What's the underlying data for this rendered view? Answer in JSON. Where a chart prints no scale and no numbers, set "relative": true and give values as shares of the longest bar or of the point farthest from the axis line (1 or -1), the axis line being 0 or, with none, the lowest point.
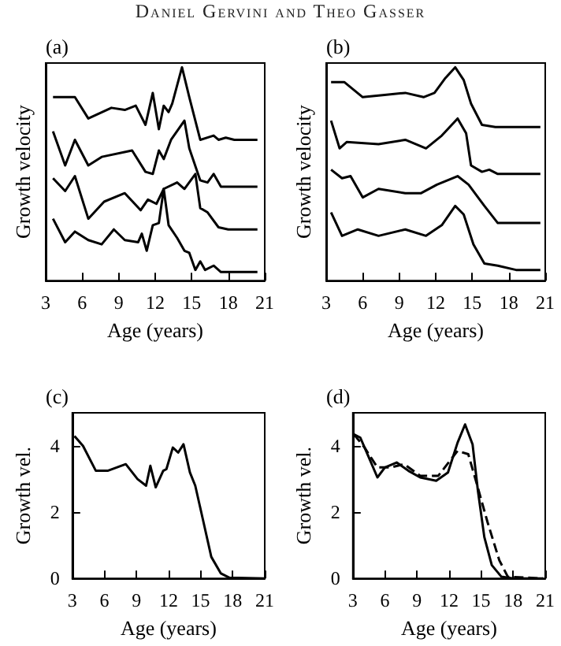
{
  "chart_data": [
    {
      "type": "line",
      "title": "(a)",
      "ylabel": "Growth velocity",
      "xlabel": "Age (years)",
      "relative": true,
      "annotations": [
        "Daniel Gervini and Theo Gasser"
      ],
      "xlim": [
        3,
        21
      ],
      "xticks": [
        3,
        6,
        9,
        12,
        15,
        18,
        21
      ],
      "marker": "none",
      "line_style": "solid",
      "grid": false,
      "series": [
        {
          "color": "#000000",
          "x": [
            3.6,
            5.4,
            6.5,
            8.4,
            9.5,
            10.4,
            11.2,
            11.8,
            12.3,
            12.7,
            13.1,
            13.4,
            14.2,
            14.8,
            15.7,
            16.8,
            17.2,
            17.8,
            18.5,
            20.4
          ],
          "values": [
            0.86,
            0.86,
            0.76,
            0.81,
            0.8,
            0.82,
            0.73,
            0.88,
            0.71,
            0.82,
            0.79,
            0.83,
            1.0,
            0.86,
            0.66,
            0.68,
            0.66,
            0.67,
            0.66,
            0.66
          ]
        },
        {
          "color": "#000000",
          "x": [
            3.6,
            4.6,
            5.4,
            6.5,
            7.6,
            10.1,
            11.2,
            11.8,
            12.3,
            12.7,
            13.3,
            14.4,
            14.8,
            15.7,
            16.3,
            16.8,
            17.4,
            20.4
          ],
          "values": [
            0.7,
            0.54,
            0.66,
            0.54,
            0.58,
            0.61,
            0.51,
            0.5,
            0.61,
            0.57,
            0.66,
            0.75,
            0.62,
            0.47,
            0.46,
            0.5,
            0.44,
            0.44
          ]
        },
        {
          "color": "#000000",
          "x": [
            3.6,
            4.6,
            5.4,
            6.5,
            7.8,
            9.5,
            10.8,
            11.4,
            12.1,
            12.7,
            13.8,
            14.4,
            15.3,
            15.7,
            16.3,
            17.2,
            18.0,
            20.4
          ],
          "values": [
            0.48,
            0.42,
            0.49,
            0.29,
            0.37,
            0.41,
            0.33,
            0.38,
            0.36,
            0.43,
            0.46,
            0.43,
            0.5,
            0.34,
            0.32,
            0.25,
            0.24,
            0.24
          ]
        },
        {
          "color": "#000000",
          "x": [
            3.6,
            4.6,
            5.4,
            6.5,
            7.6,
            8.6,
            9.5,
            10.6,
            10.9,
            11.3,
            11.8,
            12.3,
            12.7,
            13.1,
            13.8,
            14.4,
            14.8,
            15.3,
            15.7,
            16.1,
            16.8,
            17.4,
            20.4
          ],
          "values": [
            0.29,
            0.18,
            0.23,
            0.19,
            0.17,
            0.24,
            0.19,
            0.18,
            0.22,
            0.14,
            0.26,
            0.27,
            0.43,
            0.26,
            0.2,
            0.14,
            0.13,
            0.05,
            0.09,
            0.05,
            0.07,
            0.04,
            0.04
          ]
        }
      ]
    },
    {
      "type": "line",
      "title": "(b)",
      "ylabel": "Growth velocity",
      "xlabel": "Age (years)",
      "relative": true,
      "xlim": [
        3,
        21
      ],
      "xticks": [
        3,
        6,
        9,
        12,
        15,
        18,
        21
      ],
      "marker": "none",
      "line_style": "solid",
      "grid": false,
      "series": [
        {
          "color": "#000000",
          "x": [
            3.4,
            4.5,
            6.0,
            7.8,
            9.5,
            11.0,
            11.9,
            12.8,
            13.6,
            14.3,
            14.9,
            15.8,
            16.9,
            20.6
          ],
          "values": [
            0.93,
            0.93,
            0.86,
            0.87,
            0.88,
            0.86,
            0.88,
            0.95,
            1.0,
            0.94,
            0.83,
            0.73,
            0.72,
            0.72
          ]
        },
        {
          "color": "#000000",
          "x": [
            3.4,
            4.1,
            4.7,
            7.3,
            9.5,
            11.2,
            12.5,
            13.8,
            14.5,
            14.9,
            15.8,
            16.4,
            17.1,
            20.6
          ],
          "values": [
            0.75,
            0.62,
            0.65,
            0.64,
            0.66,
            0.62,
            0.68,
            0.76,
            0.69,
            0.54,
            0.51,
            0.52,
            0.5,
            0.5
          ]
        },
        {
          "color": "#000000",
          "x": [
            3.4,
            4.3,
            5.0,
            6.0,
            7.3,
            9.5,
            10.8,
            12.1,
            13.8,
            14.7,
            16.0,
            17.1,
            20.6
          ],
          "values": [
            0.52,
            0.48,
            0.49,
            0.39,
            0.43,
            0.41,
            0.41,
            0.45,
            0.49,
            0.45,
            0.35,
            0.27,
            0.27
          ]
        },
        {
          "color": "#000000",
          "x": [
            3.4,
            4.3,
            5.6,
            7.3,
            9.5,
            11.2,
            12.5,
            13.6,
            14.3,
            15.1,
            16.0,
            17.1,
            18.6,
            20.6
          ],
          "values": [
            0.32,
            0.21,
            0.24,
            0.21,
            0.24,
            0.21,
            0.26,
            0.35,
            0.31,
            0.17,
            0.08,
            0.07,
            0.05,
            0.05
          ]
        }
      ]
    },
    {
      "type": "line",
      "title": "(c)",
      "ylabel": "Growth vel.",
      "xlabel": "Age (years)",
      "xlim": [
        3,
        21
      ],
      "xticks": [
        3,
        6,
        9,
        12,
        15,
        18,
        21
      ],
      "ylim": [
        0,
        5
      ],
      "yticks": [
        0,
        2,
        4
      ],
      "marker": "none",
      "line_style": "solid",
      "grid": false,
      "series": [
        {
          "color": "#000000",
          "x": [
            3.2,
            4.0,
            5.2,
            6.3,
            8.0,
            9.1,
            9.9,
            10.3,
            10.8,
            11.5,
            11.8,
            12.4,
            12.9,
            13.4,
            14.0,
            14.5,
            15.2,
            16.0,
            16.9,
            17.7,
            21.0
          ],
          "values": [
            4.3,
            4.0,
            3.25,
            3.25,
            3.45,
            3.0,
            2.8,
            3.4,
            2.75,
            3.25,
            3.3,
            3.95,
            3.8,
            4.05,
            3.2,
            2.8,
            1.8,
            0.65,
            0.15,
            0.02,
            0
          ]
        }
      ]
    },
    {
      "type": "line",
      "title": "(d)",
      "ylabel": "Growth vel.",
      "xlabel": "Age (years)",
      "xlim": [
        3,
        21
      ],
      "xticks": [
        3,
        6,
        9,
        12,
        15,
        18,
        21
      ],
      "ylim": [
        0,
        5
      ],
      "yticks": [
        0,
        2,
        4
      ],
      "marker": "none",
      "grid": false,
      "series": [
        {
          "color": "#000000",
          "line_style": "solid",
          "x": [
            3.1,
            3.7,
            4.3,
            5.3,
            6.0,
            7.1,
            8.2,
            9.3,
            10.8,
            11.9,
            12.8,
            13.5,
            14.2,
            14.7,
            15.3,
            16.0,
            16.9,
            18.0,
            20.8
          ],
          "values": [
            4.35,
            4.25,
            3.8,
            3.05,
            3.35,
            3.5,
            3.25,
            3.05,
            2.95,
            3.2,
            4.1,
            4.65,
            4.05,
            2.65,
            1.25,
            0.4,
            0.05,
            0,
            0
          ]
        },
        {
          "color": "#000000",
          "line_style": "dashed",
          "x": [
            3.1,
            4.1,
            5.3,
            6.5,
            7.8,
            9.3,
            11.0,
            12.8,
            13.8,
            14.6,
            15.6,
            16.7,
            17.5,
            20.8
          ],
          "values": [
            4.35,
            3.95,
            3.35,
            3.35,
            3.45,
            3.1,
            3.1,
            3.85,
            3.75,
            2.85,
            1.7,
            0.55,
            0.05,
            0
          ]
        }
      ]
    }
  ]
}
